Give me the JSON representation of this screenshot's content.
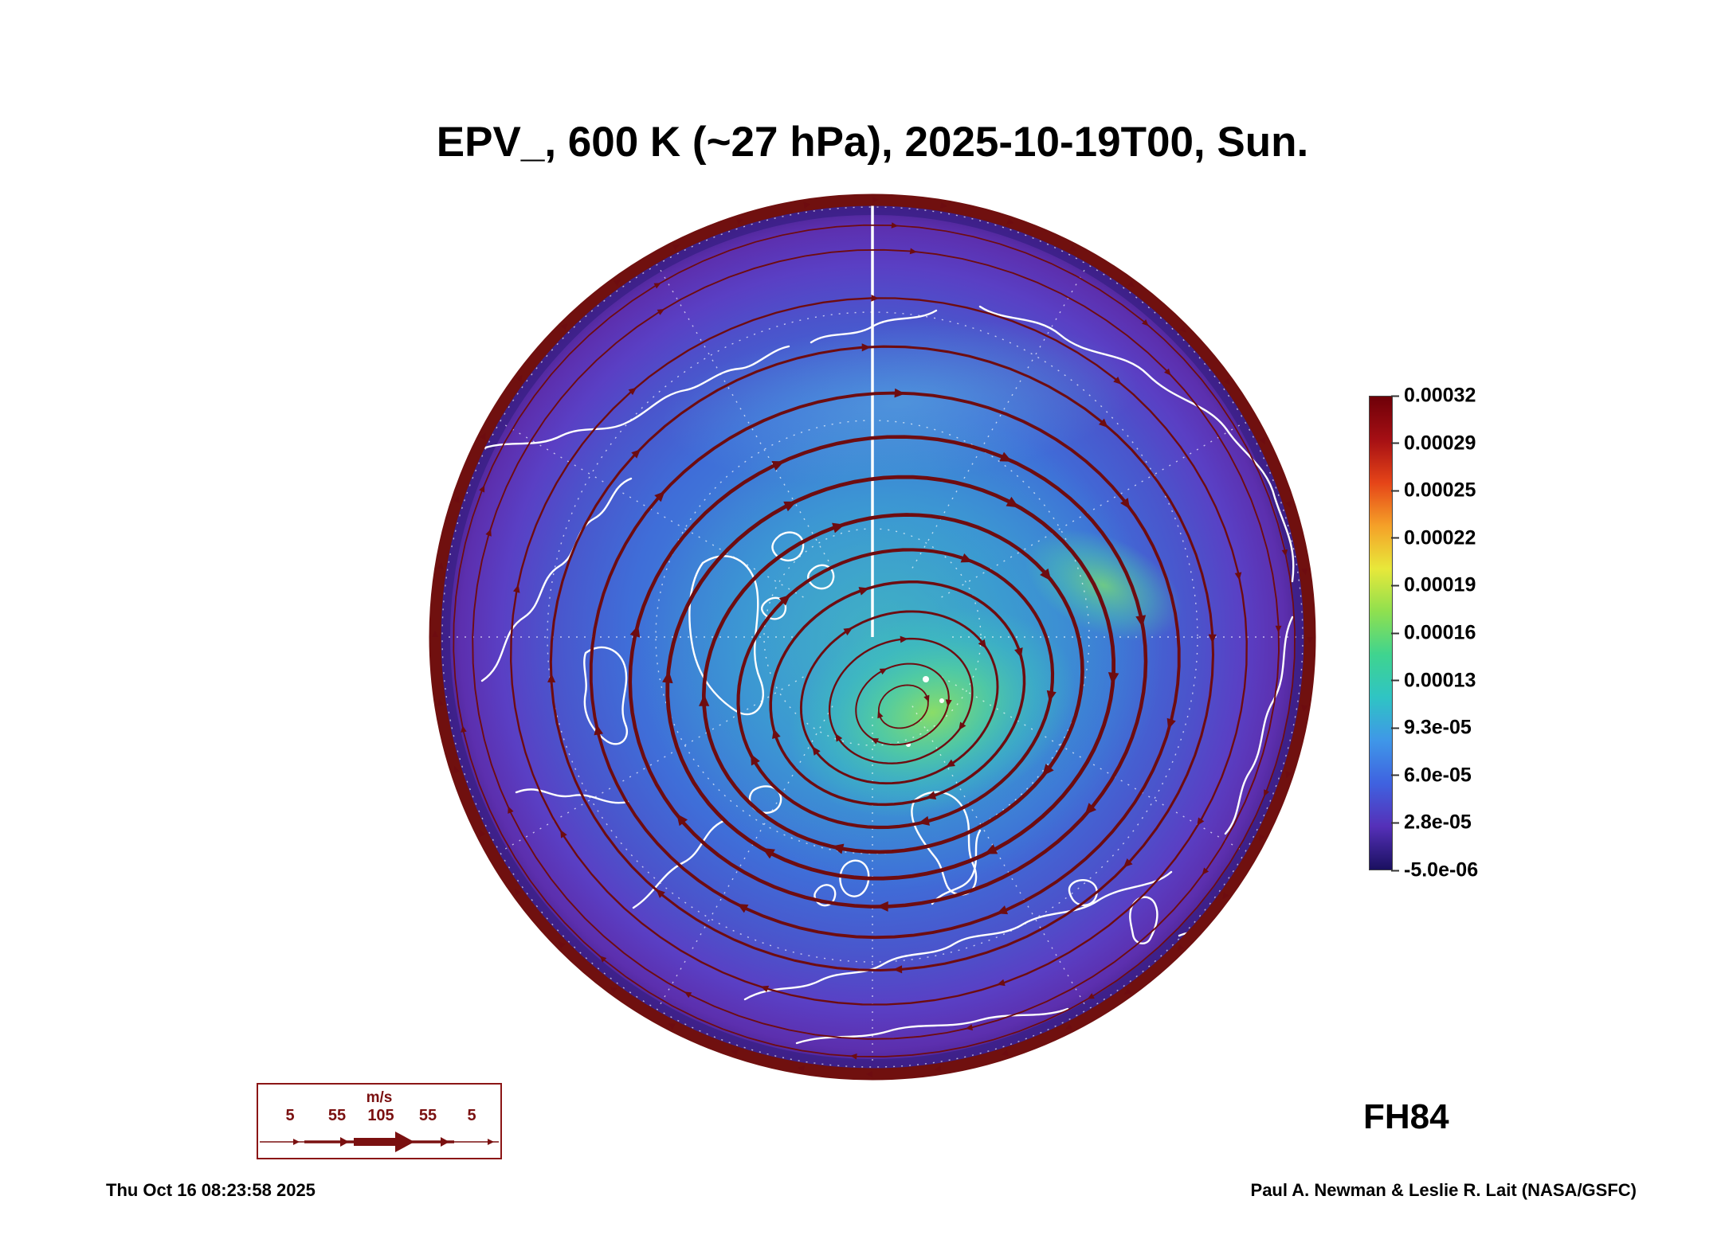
{
  "page": {
    "title": "EPV_, 600 K (~27 hPa), 2025-10-19T00, Sun.",
    "forecast_label": "FH84",
    "generated_timestamp": "Thu Oct 16 08:23:58 2025",
    "credit": "Paul A. Newman & Leslie R. Lait (NASA/GSFC)"
  },
  "chart_data": {
    "type": "heatmap",
    "title": "EPV_, 600 K (~27 hPa), 2025-10-19T00, Sun.",
    "field": "Ertel potential vorticity (EPV)",
    "level": "600 K (~27 hPa)",
    "valid_time": "2025-10-19T00, Sun.",
    "forecast_hour": "FH84",
    "projection": "north-polar-stereographic",
    "overlays": [
      "coastlines (white)",
      "wind streamlines with arrowheads (dark red, thickness = speed)",
      "dotted latitude/longitude graticule"
    ],
    "colorbar": {
      "orientation": "vertical",
      "ticks": [
        "0.00032",
        "0.00029",
        "0.00025",
        "0.00022",
        "0.00019",
        "0.00016",
        "0.00013",
        "9.3e-05",
        "6.0e-05",
        "2.8e-05",
        "-5.0e-06"
      ],
      "vmin": -5e-06,
      "vmax": 0.00032,
      "colors_bottom_to_top": [
        "#1a1060",
        "#5530b8",
        "#3f62e0",
        "#3f97e8",
        "#2fc4c4",
        "#3fd48f",
        "#8fe04f",
        "#e8e83a",
        "#f5a028",
        "#e54418",
        "#a50f14",
        "#6e0008"
      ]
    },
    "streamlines": {
      "color": "#6e0c10",
      "direction": "clockwise",
      "vortex_center_offset": [
        40,
        90
      ],
      "radii": [
        32,
        60,
        92,
        126,
        162,
        200,
        240,
        282,
        325,
        370,
        416,
        462,
        506,
        528
      ],
      "loop_count": 14
    },
    "wind_legend": {
      "units_label": "m/s",
      "speeds": [
        "5",
        "55",
        "105",
        "55",
        "5"
      ]
    }
  }
}
